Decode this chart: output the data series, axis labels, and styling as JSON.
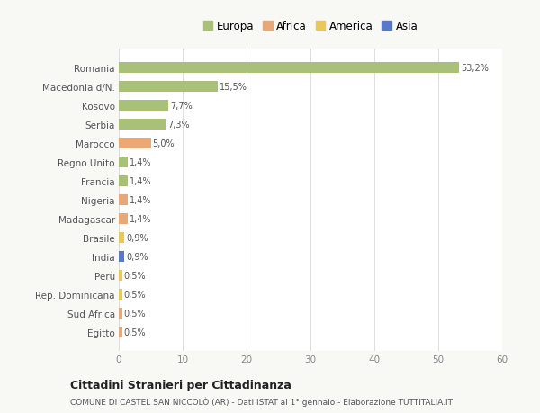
{
  "categories": [
    "Romania",
    "Macedonia d/N.",
    "Kosovo",
    "Serbia",
    "Marocco",
    "Regno Unito",
    "Francia",
    "Nigeria",
    "Madagascar",
    "Brasile",
    "India",
    "Perù",
    "Rep. Dominicana",
    "Sud Africa",
    "Egitto"
  ],
  "values": [
    53.2,
    15.5,
    7.7,
    7.3,
    5.0,
    1.4,
    1.4,
    1.4,
    1.4,
    0.9,
    0.9,
    0.5,
    0.5,
    0.5,
    0.5
  ],
  "labels": [
    "53,2%",
    "15,5%",
    "7,7%",
    "7,3%",
    "5,0%",
    "1,4%",
    "1,4%",
    "1,4%",
    "1,4%",
    "0,9%",
    "0,9%",
    "0,5%",
    "0,5%",
    "0,5%",
    "0,5%"
  ],
  "colors": [
    "#a8c078",
    "#a8c078",
    "#a8c078",
    "#a8c078",
    "#e8a878",
    "#a8c078",
    "#a8c078",
    "#e8a878",
    "#e8a878",
    "#e8c858",
    "#5878c8",
    "#e8c858",
    "#e8c858",
    "#e8a878",
    "#e8a878"
  ],
  "legend_labels": [
    "Europa",
    "Africa",
    "America",
    "Asia"
  ],
  "legend_colors": [
    "#a8c078",
    "#e8a878",
    "#e8c858",
    "#5878c8"
  ],
  "title": "Cittadini Stranieri per Cittadinanza",
  "subtitle": "COMUNE DI CASTEL SAN NICCOLÒ (AR) - Dati ISTAT al 1° gennaio - Elaborazione TUTTITALIA.IT",
  "xlim": [
    0,
    60
  ],
  "xticks": [
    0,
    10,
    20,
    30,
    40,
    50,
    60
  ],
  "background_color": "#f8f8f5",
  "bar_background": "#ffffff",
  "grid_color": "#dddddd"
}
